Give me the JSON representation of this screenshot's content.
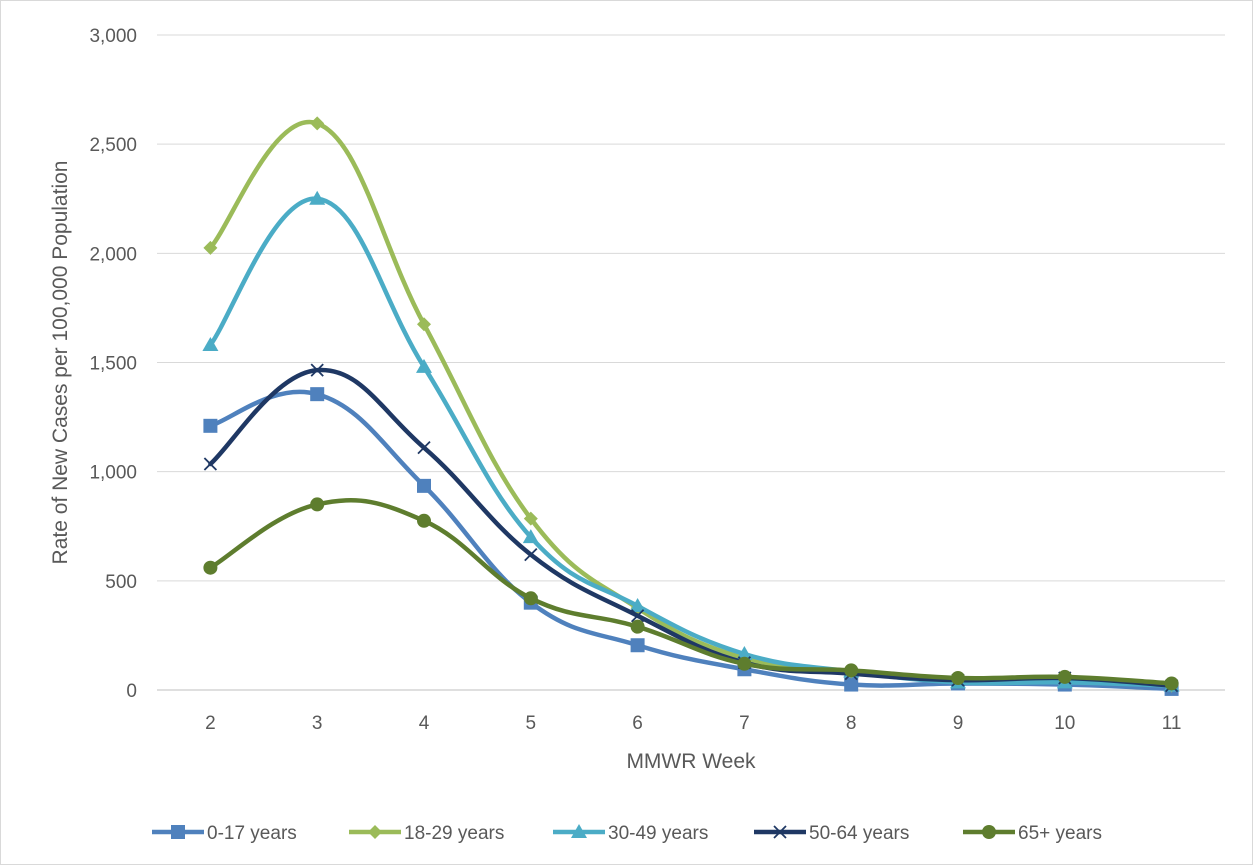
{
  "chart_data": {
    "type": "line",
    "x": [
      2,
      3,
      4,
      5,
      6,
      7,
      8,
      9,
      10,
      11
    ],
    "xlabel": "MMWR Week",
    "ylabel": "Rate of New Cases per 100,000 Population",
    "ylim": [
      0,
      3000
    ],
    "y_ticks": [
      0,
      500,
      1000,
      1500,
      2000,
      2500,
      3000
    ],
    "y_tick_labels": [
      "0",
      "500",
      "1,000",
      "1,500",
      "2,000",
      "2,500",
      "3,000"
    ],
    "x_tick_labels": [
      "2",
      "3",
      "4",
      "5",
      "6",
      "7",
      "8",
      "9",
      "10",
      "11"
    ],
    "grid": true,
    "smoothed": true,
    "legend_position": "bottom",
    "series": [
      {
        "name": "0-17 years",
        "color": "#4f81bd",
        "marker": "square",
        "values": [
          1210,
          1355,
          935,
          400,
          205,
          95,
          25,
          30,
          25,
          5
        ]
      },
      {
        "name": "18-29 years",
        "color": "#9bbb59",
        "marker": "diamond",
        "values": [
          2025,
          2595,
          1675,
          785,
          375,
          145,
          85,
          45,
          45,
          20
        ]
      },
      {
        "name": "30-49 years",
        "color": "#4bacc6",
        "marker": "triangle",
        "values": [
          1580,
          2250,
          1480,
          700,
          385,
          165,
          85,
          35,
          35,
          20
        ]
      },
      {
        "name": "50-64 years",
        "color": "#1f3864",
        "marker": "x",
        "values": [
          1035,
          1465,
          1110,
          620,
          340,
          125,
          75,
          45,
          55,
          20
        ]
      },
      {
        "name": "65+ years",
        "color": "#5e7d2e",
        "marker": "circle",
        "values": [
          560,
          850,
          775,
          420,
          290,
          120,
          90,
          55,
          60,
          30
        ]
      }
    ]
  }
}
